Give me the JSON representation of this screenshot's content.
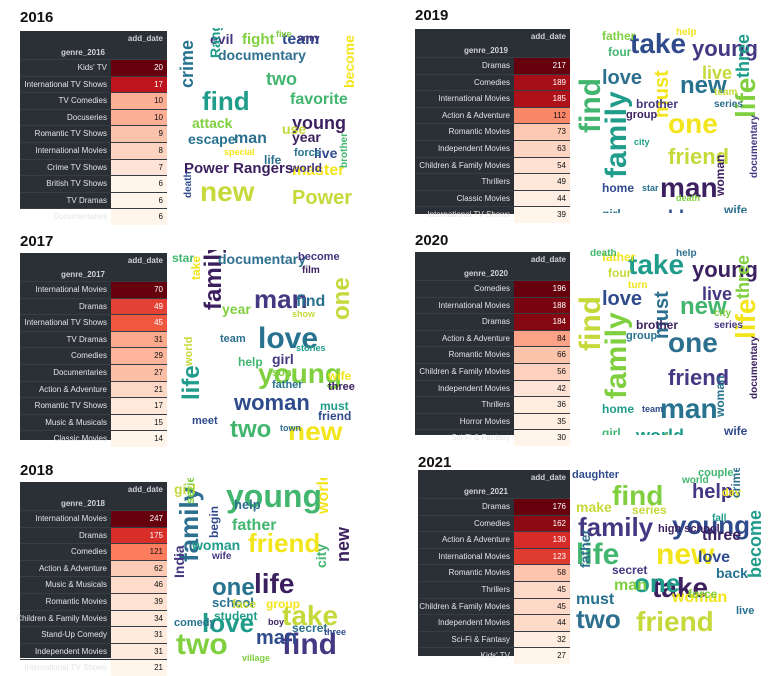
{
  "panels": [
    {
      "year": "2016",
      "column_header": "add_date",
      "index_header": "genre_2016",
      "rows": [
        {
          "genre": "Kids' TV",
          "count": "20"
        },
        {
          "genre": "International TV Shows",
          "count": "17"
        },
        {
          "genre": "TV Comedies",
          "count": "10"
        },
        {
          "genre": "Docuseries",
          "count": "10"
        },
        {
          "genre": "Romantic TV Shows",
          "count": "9"
        },
        {
          "genre": "International Movies",
          "count": "8"
        },
        {
          "genre": "Crime TV Shows",
          "count": "7"
        },
        {
          "genre": "British TV Shows",
          "count": "6"
        },
        {
          "genre": "TV Dramas",
          "count": "6"
        },
        {
          "genre": "Documentaries",
          "count": "6"
        }
      ],
      "cloud_words": [
        "Power Rangers",
        "find",
        "new",
        "documentary",
        "crime",
        "fight",
        "evil",
        "team",
        "two",
        "master",
        "young",
        "series",
        "Power",
        "man",
        "escape",
        "attack",
        "world",
        "live",
        "favorite",
        "become",
        "year",
        "Ranger",
        "use",
        "life",
        "force",
        "five",
        "army",
        "death",
        "brother",
        "special"
      ]
    },
    {
      "year": "2019",
      "column_header": "add_date",
      "index_header": "genre_2019",
      "rows": [
        {
          "genre": "Dramas",
          "count": "217"
        },
        {
          "genre": "Comedies",
          "count": "189"
        },
        {
          "genre": "International Movies",
          "count": "185"
        },
        {
          "genre": "Action & Adventure",
          "count": "112"
        },
        {
          "genre": "Romantic Movies",
          "count": "73"
        },
        {
          "genre": "Independent Movies",
          "count": "63"
        },
        {
          "genre": "Children & Family Movies",
          "count": "54"
        },
        {
          "genre": "Thrillers",
          "count": "49"
        },
        {
          "genre": "Classic Movies",
          "count": "44"
        },
        {
          "genre": "International TV Shows",
          "count": "39"
        }
      ],
      "cloud_words": [
        "take",
        "find",
        "one",
        "man",
        "family",
        "friend",
        "love",
        "new",
        "life",
        "young",
        "world",
        "two",
        "must",
        "woman",
        "three",
        "live",
        "wife",
        "girl",
        "father",
        "brother",
        "home",
        "four",
        "help",
        "group",
        "city",
        "team",
        "series",
        "star",
        "death",
        "documentary"
      ]
    },
    {
      "year": "2017",
      "column_header": "add_date",
      "index_header": "genre_2017",
      "rows": [
        {
          "genre": "International Movies",
          "count": "70"
        },
        {
          "genre": "Dramas",
          "count": "49"
        },
        {
          "genre": "International TV Shows",
          "count": "45"
        },
        {
          "genre": "TV Dramas",
          "count": "31"
        },
        {
          "genre": "Comedies",
          "count": "29"
        },
        {
          "genre": "Documentaries",
          "count": "27"
        },
        {
          "genre": "Action & Adventure",
          "count": "21"
        },
        {
          "genre": "Romantic TV Shows",
          "count": "17"
        },
        {
          "genre": "Music & Musicals",
          "count": "15"
        },
        {
          "genre": "Classic Movies",
          "count": "14"
        }
      ],
      "cloud_words": [
        "love",
        "young",
        "man",
        "woman",
        "two",
        "new",
        "family",
        "life",
        "one",
        "documentary",
        "find",
        "year",
        "girl",
        "friend",
        "help",
        "wife",
        "three",
        "must",
        "world",
        "team",
        "father",
        "son",
        "become",
        "meet",
        "star",
        "take",
        "film",
        "stories",
        "show",
        "town"
      ]
    },
    {
      "year": "2020",
      "column_header": "add_date",
      "index_header": "genre_2020",
      "rows": [
        {
          "genre": "Comedies",
          "count": "196"
        },
        {
          "genre": "International Movies",
          "count": "188"
        },
        {
          "genre": "Dramas",
          "count": "184"
        },
        {
          "genre": "Action & Adventure",
          "count": "84"
        },
        {
          "genre": "Romantic Movies",
          "count": "66"
        },
        {
          "genre": "Children & Family Movies",
          "count": "56"
        },
        {
          "genre": "Independent Movies",
          "count": "42"
        },
        {
          "genre": "Thrillers",
          "count": "36"
        },
        {
          "genre": "Horror Movies",
          "count": "35"
        },
        {
          "genre": "Sci-Fi & Fantasy",
          "count": "30"
        }
      ],
      "cloud_words": [
        "take",
        "find",
        "one",
        "man",
        "family",
        "friend",
        "love",
        "new",
        "life",
        "young",
        "world",
        "two",
        "must",
        "woman",
        "three",
        "live",
        "wife",
        "girl",
        "father",
        "brother",
        "home",
        "four",
        "help",
        "group",
        "city",
        "series",
        "team",
        "death",
        "turn",
        "documentary"
      ]
    },
    {
      "year": "2018",
      "column_header": "add_date",
      "index_header": "genre_2018",
      "rows": [
        {
          "genre": "International Movies",
          "count": "247"
        },
        {
          "genre": "Dramas",
          "count": "175"
        },
        {
          "genre": "Comedies",
          "count": "121"
        },
        {
          "genre": "Action & Adventure",
          "count": "62"
        },
        {
          "genre": "Music & Musicals",
          "count": "46"
        },
        {
          "genre": "Romantic Movies",
          "count": "39"
        },
        {
          "genre": "Children & Family Movies",
          "count": "34"
        },
        {
          "genre": "Stand-Up Comedy",
          "count": "31"
        },
        {
          "genre": "Independent Movies",
          "count": "31"
        },
        {
          "genre": "International TV Shows",
          "count": "21"
        }
      ],
      "cloud_words": [
        "young",
        "friend",
        "life",
        "love",
        "take",
        "family",
        "one",
        "two",
        "find",
        "man",
        "father",
        "world",
        "new",
        "woman",
        "girl",
        "help",
        "school",
        "series",
        "India",
        "begin",
        "city",
        "group",
        "boy",
        "student",
        "face",
        "secret",
        "comedy",
        "village",
        "wife",
        "three"
      ]
    },
    {
      "year": "2021",
      "column_header": "add_date",
      "index_header": "genre_2021",
      "rows": [
        {
          "genre": "Dramas",
          "count": "176"
        },
        {
          "genre": "Comedies",
          "count": "162"
        },
        {
          "genre": "Action & Adventure",
          "count": "130"
        },
        {
          "genre": "International Movies",
          "count": "123"
        },
        {
          "genre": "Romantic Movies",
          "count": "58"
        },
        {
          "genre": "Thrillers",
          "count": "45"
        },
        {
          "genre": "Children & Family Movies",
          "count": "45"
        },
        {
          "genre": "Independent Movies",
          "count": "44"
        },
        {
          "genre": "Sci-Fi & Fantasy",
          "count": "32"
        },
        {
          "genre": "Kids' TV",
          "count": "27"
        }
      ],
      "cloud_words": [
        "find",
        "family",
        "young",
        "life",
        "new",
        "take",
        "one",
        "friend",
        "two",
        "must",
        "man",
        "help",
        "love",
        "world",
        "woman",
        "three",
        "become",
        "make",
        "father",
        "back",
        "force",
        "secret",
        "daughter",
        "couple",
        "day",
        "high school",
        "fall",
        "series",
        "crime",
        "live"
      ]
    }
  ]
}
